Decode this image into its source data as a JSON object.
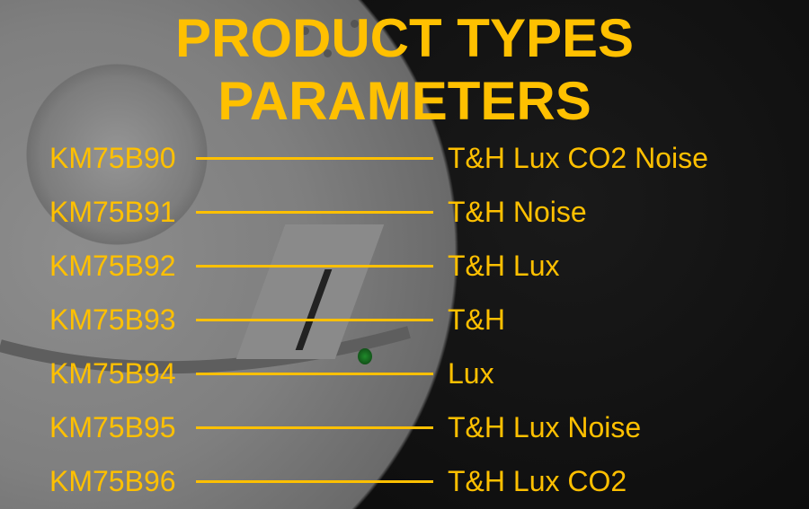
{
  "title": {
    "line1": "PRODUCT TYPES",
    "line2": "PARAMETERS"
  },
  "accent_color": "#ffc000",
  "rows": [
    {
      "model": "KM75B90",
      "spec": "T&H Lux CO2 Noise"
    },
    {
      "model": "KM75B91",
      "spec": "T&H Noise"
    },
    {
      "model": "KM75B92",
      "spec": "T&H Lux"
    },
    {
      "model": "KM75B93",
      "spec": "T&H"
    },
    {
      "model": "KM75B94",
      "spec": "Lux"
    },
    {
      "model": "KM75B95",
      "spec": "T&H Lux Noise"
    },
    {
      "model": "KM75B96",
      "spec": "T&H Lux CO2"
    }
  ]
}
